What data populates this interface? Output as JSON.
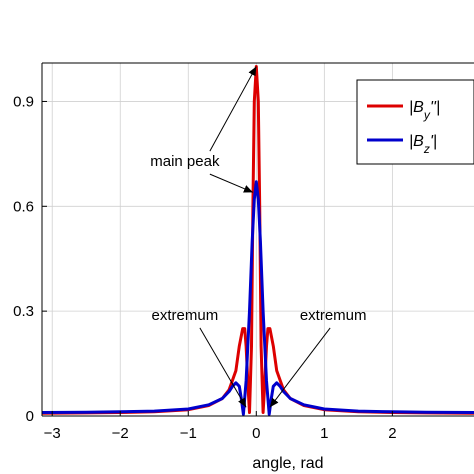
{
  "chart_data": {
    "type": "line",
    "xlabel": "angle, rad",
    "ylabel": "",
    "xlim": [
      -3.15,
      3.2
    ],
    "ylim": [
      0,
      1.01
    ],
    "x_ticks": [
      -3,
      -2,
      -1,
      0,
      1,
      2
    ],
    "x_tick_labels": [
      "−3",
      "−2",
      "−1",
      "0",
      "1",
      "2"
    ],
    "y_ticks": [
      0,
      0.3,
      0.6,
      0.9
    ],
    "y_tick_labels": [
      "0",
      "0.3",
      "0.6",
      "0.9"
    ],
    "grid": true,
    "legend_position": "top-right",
    "series": [
      {
        "name": "|B_y''|",
        "legend": {
          "pre": "|",
          "base": "B",
          "sub": "y",
          "post": "''|"
        },
        "color": "#dd0000",
        "x": [
          -3.15,
          -2.5,
          -2.0,
          -1.5,
          -1.0,
          -0.7,
          -0.5,
          -0.4,
          -0.3,
          -0.25,
          -0.2,
          -0.17,
          -0.15,
          -0.12,
          -0.1,
          -0.07,
          -0.05,
          -0.03,
          0.0,
          0.03,
          0.05,
          0.07,
          0.1,
          0.12,
          0.15,
          0.17,
          0.2,
          0.25,
          0.3,
          0.4,
          0.5,
          0.7,
          1.0,
          1.5,
          2.0,
          2.5,
          3.2
        ],
        "y": [
          0.008,
          0.009,
          0.01,
          0.012,
          0.018,
          0.03,
          0.05,
          0.075,
          0.13,
          0.2,
          0.25,
          0.25,
          0.2,
          0.08,
          0.01,
          0.2,
          0.6,
          0.9,
          1.0,
          0.9,
          0.6,
          0.2,
          0.01,
          0.08,
          0.2,
          0.25,
          0.25,
          0.2,
          0.13,
          0.075,
          0.05,
          0.03,
          0.018,
          0.012,
          0.01,
          0.009,
          0.008
        ]
      },
      {
        "name": "|B_z'|",
        "legend": {
          "pre": "|",
          "base": "B",
          "sub": "z",
          "post": "'|"
        },
        "color": "#0000cc",
        "x": [
          -3.15,
          -2.5,
          -2.0,
          -1.5,
          -1.0,
          -0.7,
          -0.5,
          -0.4,
          -0.35,
          -0.3,
          -0.25,
          -0.22,
          -0.19,
          -0.15,
          -0.1,
          -0.06,
          -0.03,
          0.0,
          0.03,
          0.06,
          0.1,
          0.15,
          0.19,
          0.22,
          0.25,
          0.3,
          0.35,
          0.4,
          0.5,
          0.7,
          1.0,
          1.5,
          2.0,
          2.5,
          3.2
        ],
        "y": [
          0.01,
          0.011,
          0.012,
          0.014,
          0.02,
          0.032,
          0.05,
          0.07,
          0.085,
          0.095,
          0.085,
          0.05,
          0.005,
          0.1,
          0.3,
          0.5,
          0.62,
          0.67,
          0.62,
          0.5,
          0.3,
          0.1,
          0.005,
          0.05,
          0.085,
          0.095,
          0.085,
          0.07,
          0.05,
          0.032,
          0.02,
          0.014,
          0.012,
          0.011,
          0.01
        ]
      }
    ],
    "annotations": [
      {
        "text": "main peak",
        "x": -1.05,
        "y": 0.715,
        "arrows_to": [
          [
            0.0,
            1.0
          ],
          [
            -0.05,
            0.64
          ]
        ]
      },
      {
        "text": "extremum",
        "x": -1.05,
        "y": 0.275,
        "arrows_to": [
          [
            -0.15,
            0.025
          ]
        ]
      },
      {
        "text": "extremum",
        "x": 1.13,
        "y": 0.275,
        "arrows_to": [
          [
            0.2,
            0.025
          ]
        ]
      }
    ]
  }
}
